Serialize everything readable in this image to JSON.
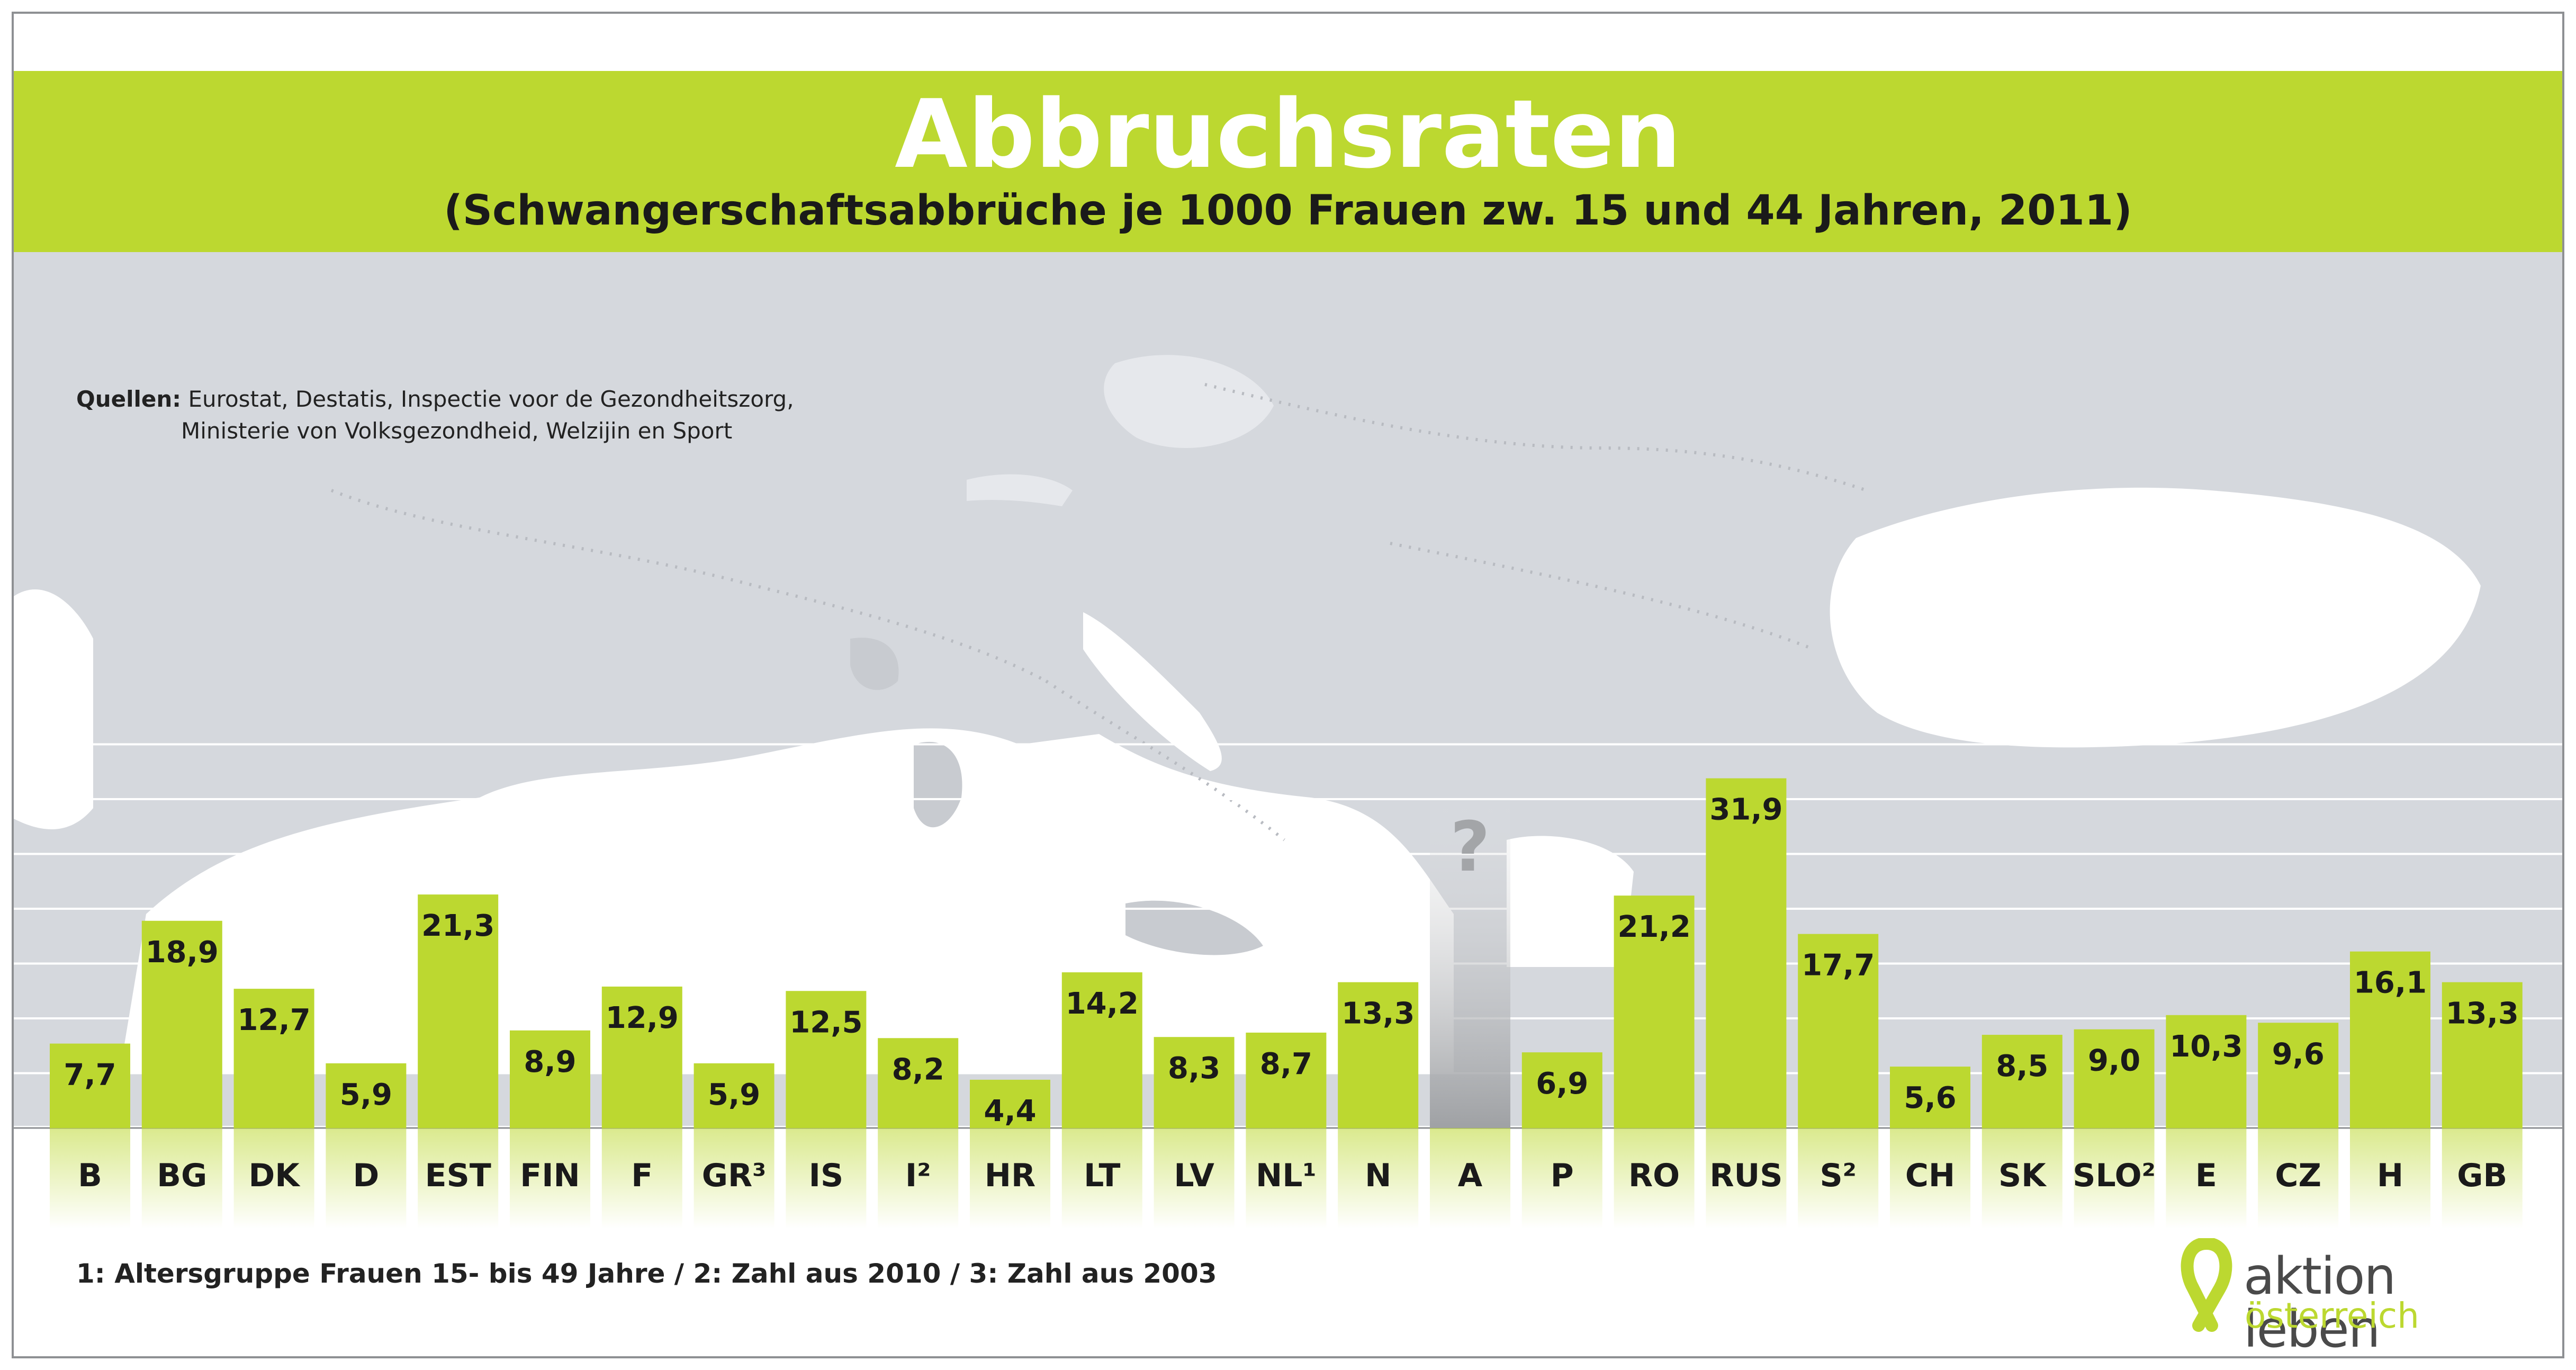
{
  "title": "Abbruchsraten",
  "subtitle": "(Schwangerschaftsabbrüche je 1000 Frauen zw. 15 und 44 Jahren, 2011)",
  "sources": {
    "label": "Quellen:",
    "line1": "Eurostat, Destatis, Inspectie voor de Gezondheitszorg,",
    "line2": "Ministerie von Volksgezondheid, Welzijin en Sport"
  },
  "footnote": "1: Altersgruppe Frauen 15- bis 49 Jahre / 2: Zahl aus 2010 / 3: Zahl aus 2003",
  "logo": {
    "line1": "aktion leben",
    "line2": "österreich"
  },
  "colors": {
    "bar": "#bcd830",
    "banner": "#bcd830",
    "map": "#d5d8dd",
    "unknown_bar": "#a3a5a8",
    "text": "#1a1a1a"
  },
  "chart_data": {
    "type": "bar",
    "title": "Abbruchsraten",
    "subtitle": "(Schwangerschaftsabbrüche je 1000 Frauen zw. 15 und 44 Jahren, 2011)",
    "xlabel": "",
    "ylabel": "",
    "ylim": [
      0,
      35
    ],
    "grid": true,
    "categories": [
      "B",
      "BG",
      "DK",
      "D",
      "EST",
      "FIN",
      "F",
      "GR³",
      "IS",
      "I²",
      "HR",
      "LT",
      "LV",
      "NL¹",
      "N",
      "A",
      "P",
      "RO",
      "RUS",
      "S²",
      "CH",
      "SK",
      "SLO²",
      "E",
      "CZ",
      "H",
      "GB"
    ],
    "values": [
      7.7,
      18.9,
      12.7,
      5.9,
      21.3,
      8.9,
      12.9,
      5.9,
      12.5,
      8.2,
      4.4,
      14.2,
      8.3,
      8.7,
      13.3,
      null,
      6.9,
      21.2,
      31.9,
      17.7,
      5.6,
      8.5,
      9.0,
      10.3,
      9.6,
      16.1,
      13.3
    ],
    "value_labels": [
      "7,7",
      "18,9",
      "12,7",
      "5,9",
      "21,3",
      "8,9",
      "12,9",
      "5,9",
      "12,5",
      "8,2",
      "4,4",
      "14,2",
      "8,3",
      "8,7",
      "13,3",
      "?",
      "6,9",
      "21,2",
      "31,9",
      "17,7",
      "5,6",
      "8,5",
      "9,0",
      "10,3",
      "9,6",
      "16,1",
      "13,3"
    ],
    "annotations": [
      "A: ? (keine Daten)"
    ]
  }
}
